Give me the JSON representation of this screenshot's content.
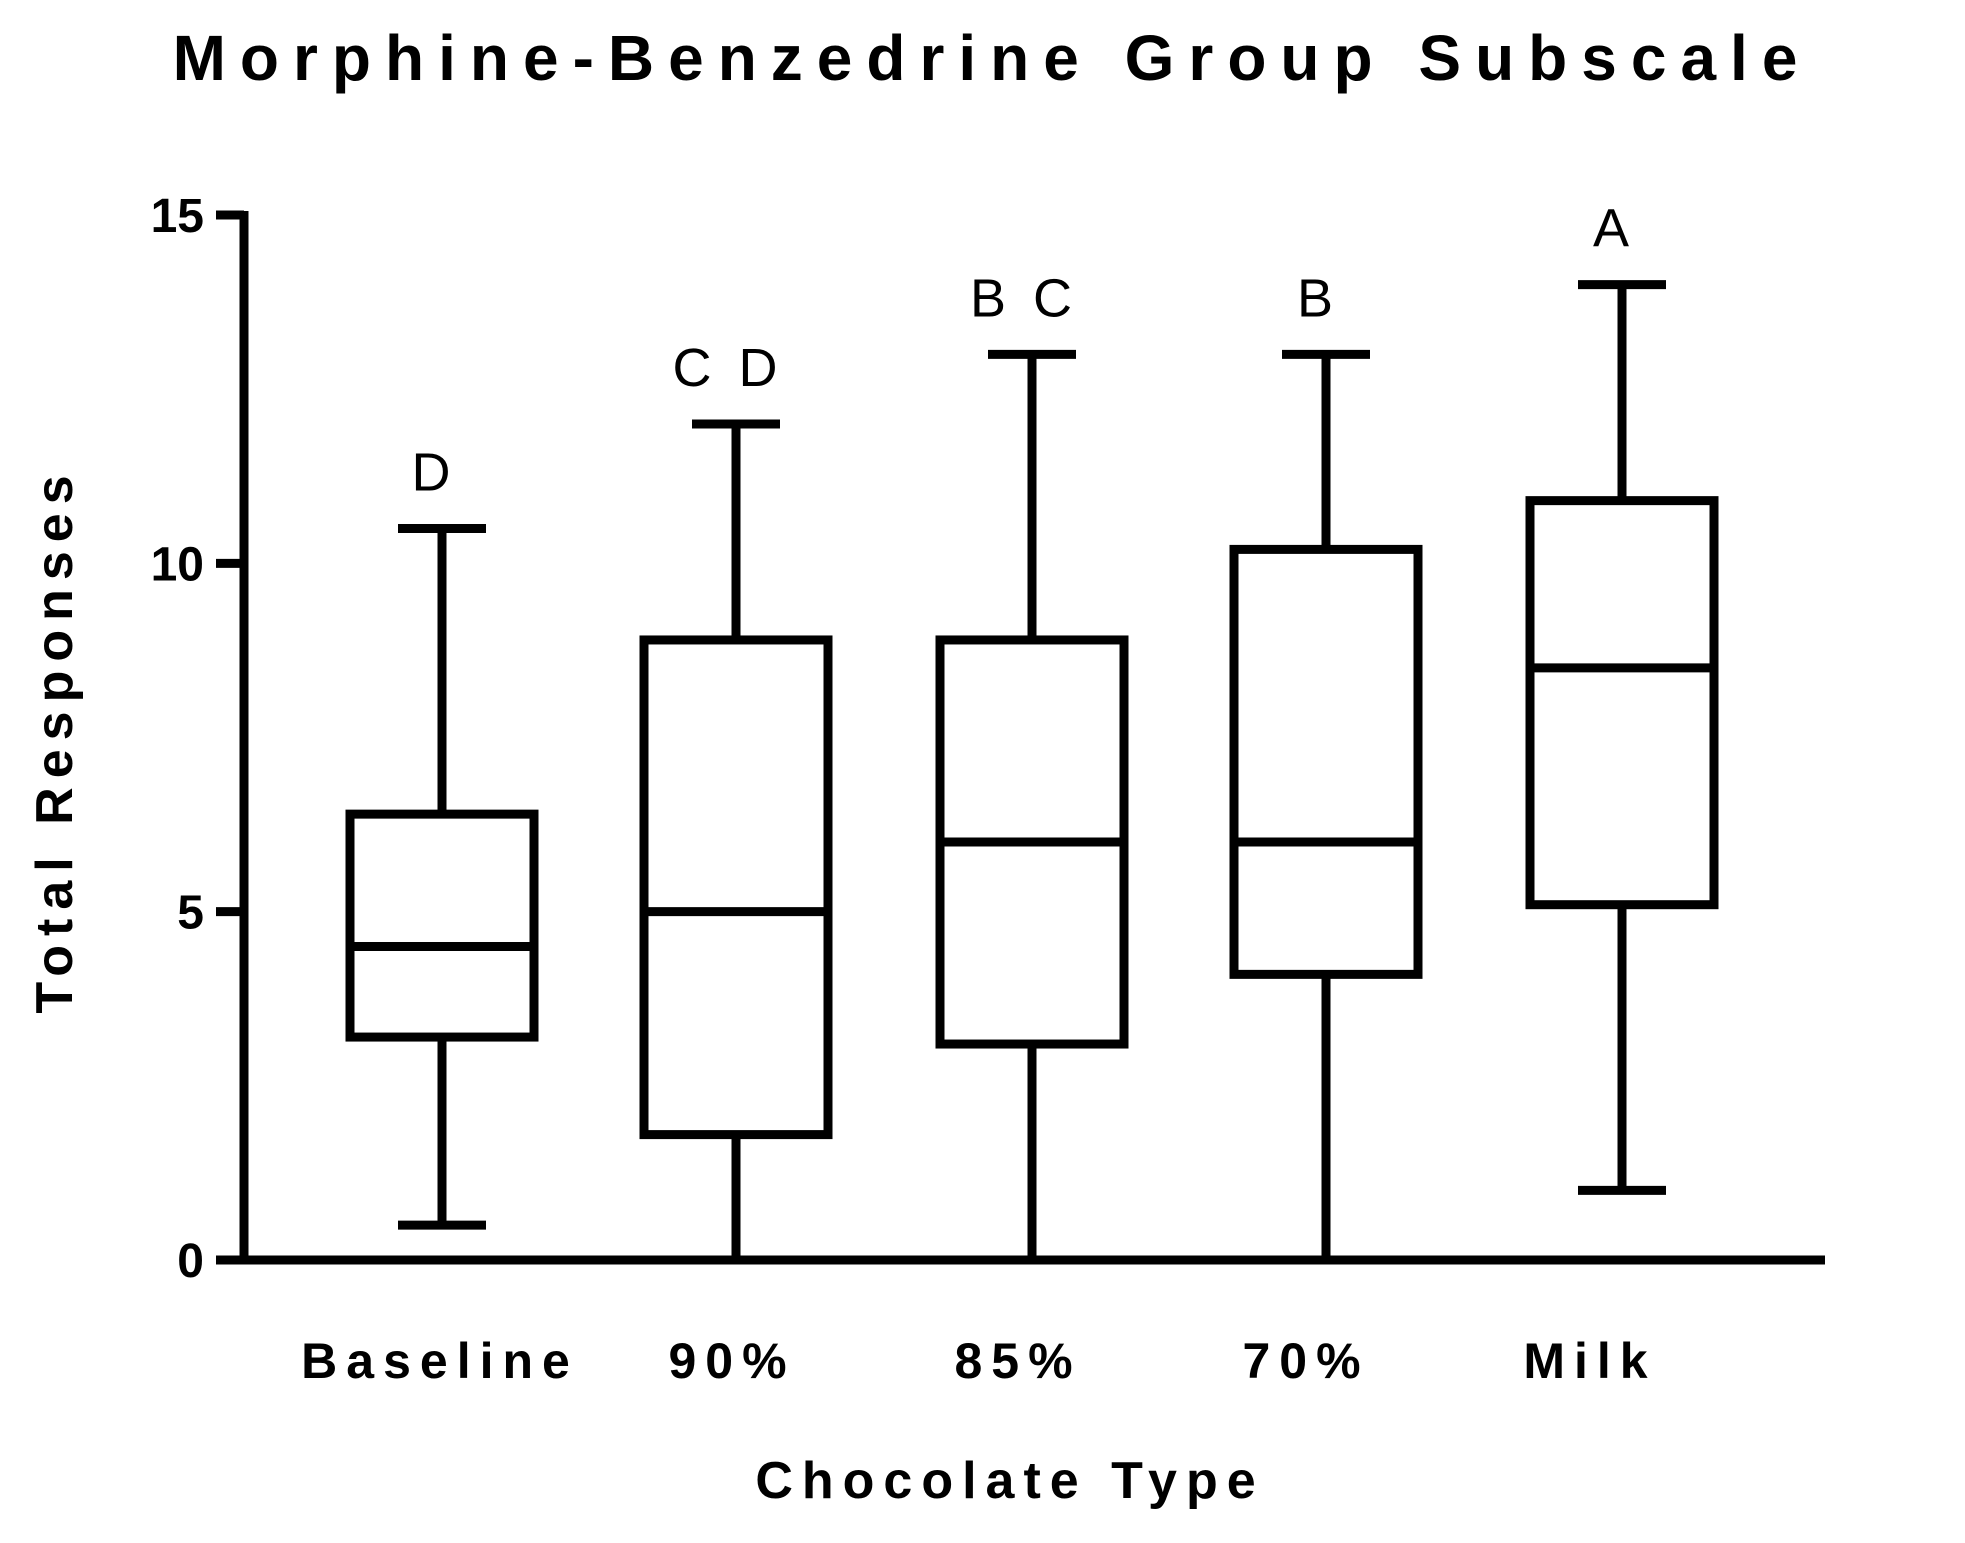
{
  "chart_data": {
    "type": "box",
    "title": "Morphine-Benzedrine Group Subscale",
    "xlabel": "Chocolate Type",
    "ylabel": "Total Responses",
    "ylim": [
      0,
      15
    ],
    "yticks": [
      0,
      5,
      10,
      15
    ],
    "categories": [
      "Baseline",
      "90%",
      "85%",
      "70%",
      "Milk"
    ],
    "boxes": [
      {
        "category": "Baseline",
        "min": 0.5,
        "q1": 3.2,
        "median": 4.5,
        "q3": 6.4,
        "max": 10.5,
        "letter": "D"
      },
      {
        "category": "90%",
        "min": 0,
        "q1": 1.8,
        "median": 5,
        "q3": 8.9,
        "max": 12,
        "letter": "C D"
      },
      {
        "category": "85%",
        "min": 0,
        "q1": 3.1,
        "median": 6,
        "q3": 8.9,
        "max": 13,
        "letter": "B C"
      },
      {
        "category": "70%",
        "min": 0,
        "q1": 4.1,
        "median": 6,
        "q3": 10.2,
        "max": 13,
        "letter": "B"
      },
      {
        "category": "Milk",
        "min": 1,
        "q1": 5.1,
        "median": 8.5,
        "q3": 10.9,
        "max": 14,
        "letter": "A"
      }
    ],
    "grid": false,
    "legend": "none"
  }
}
